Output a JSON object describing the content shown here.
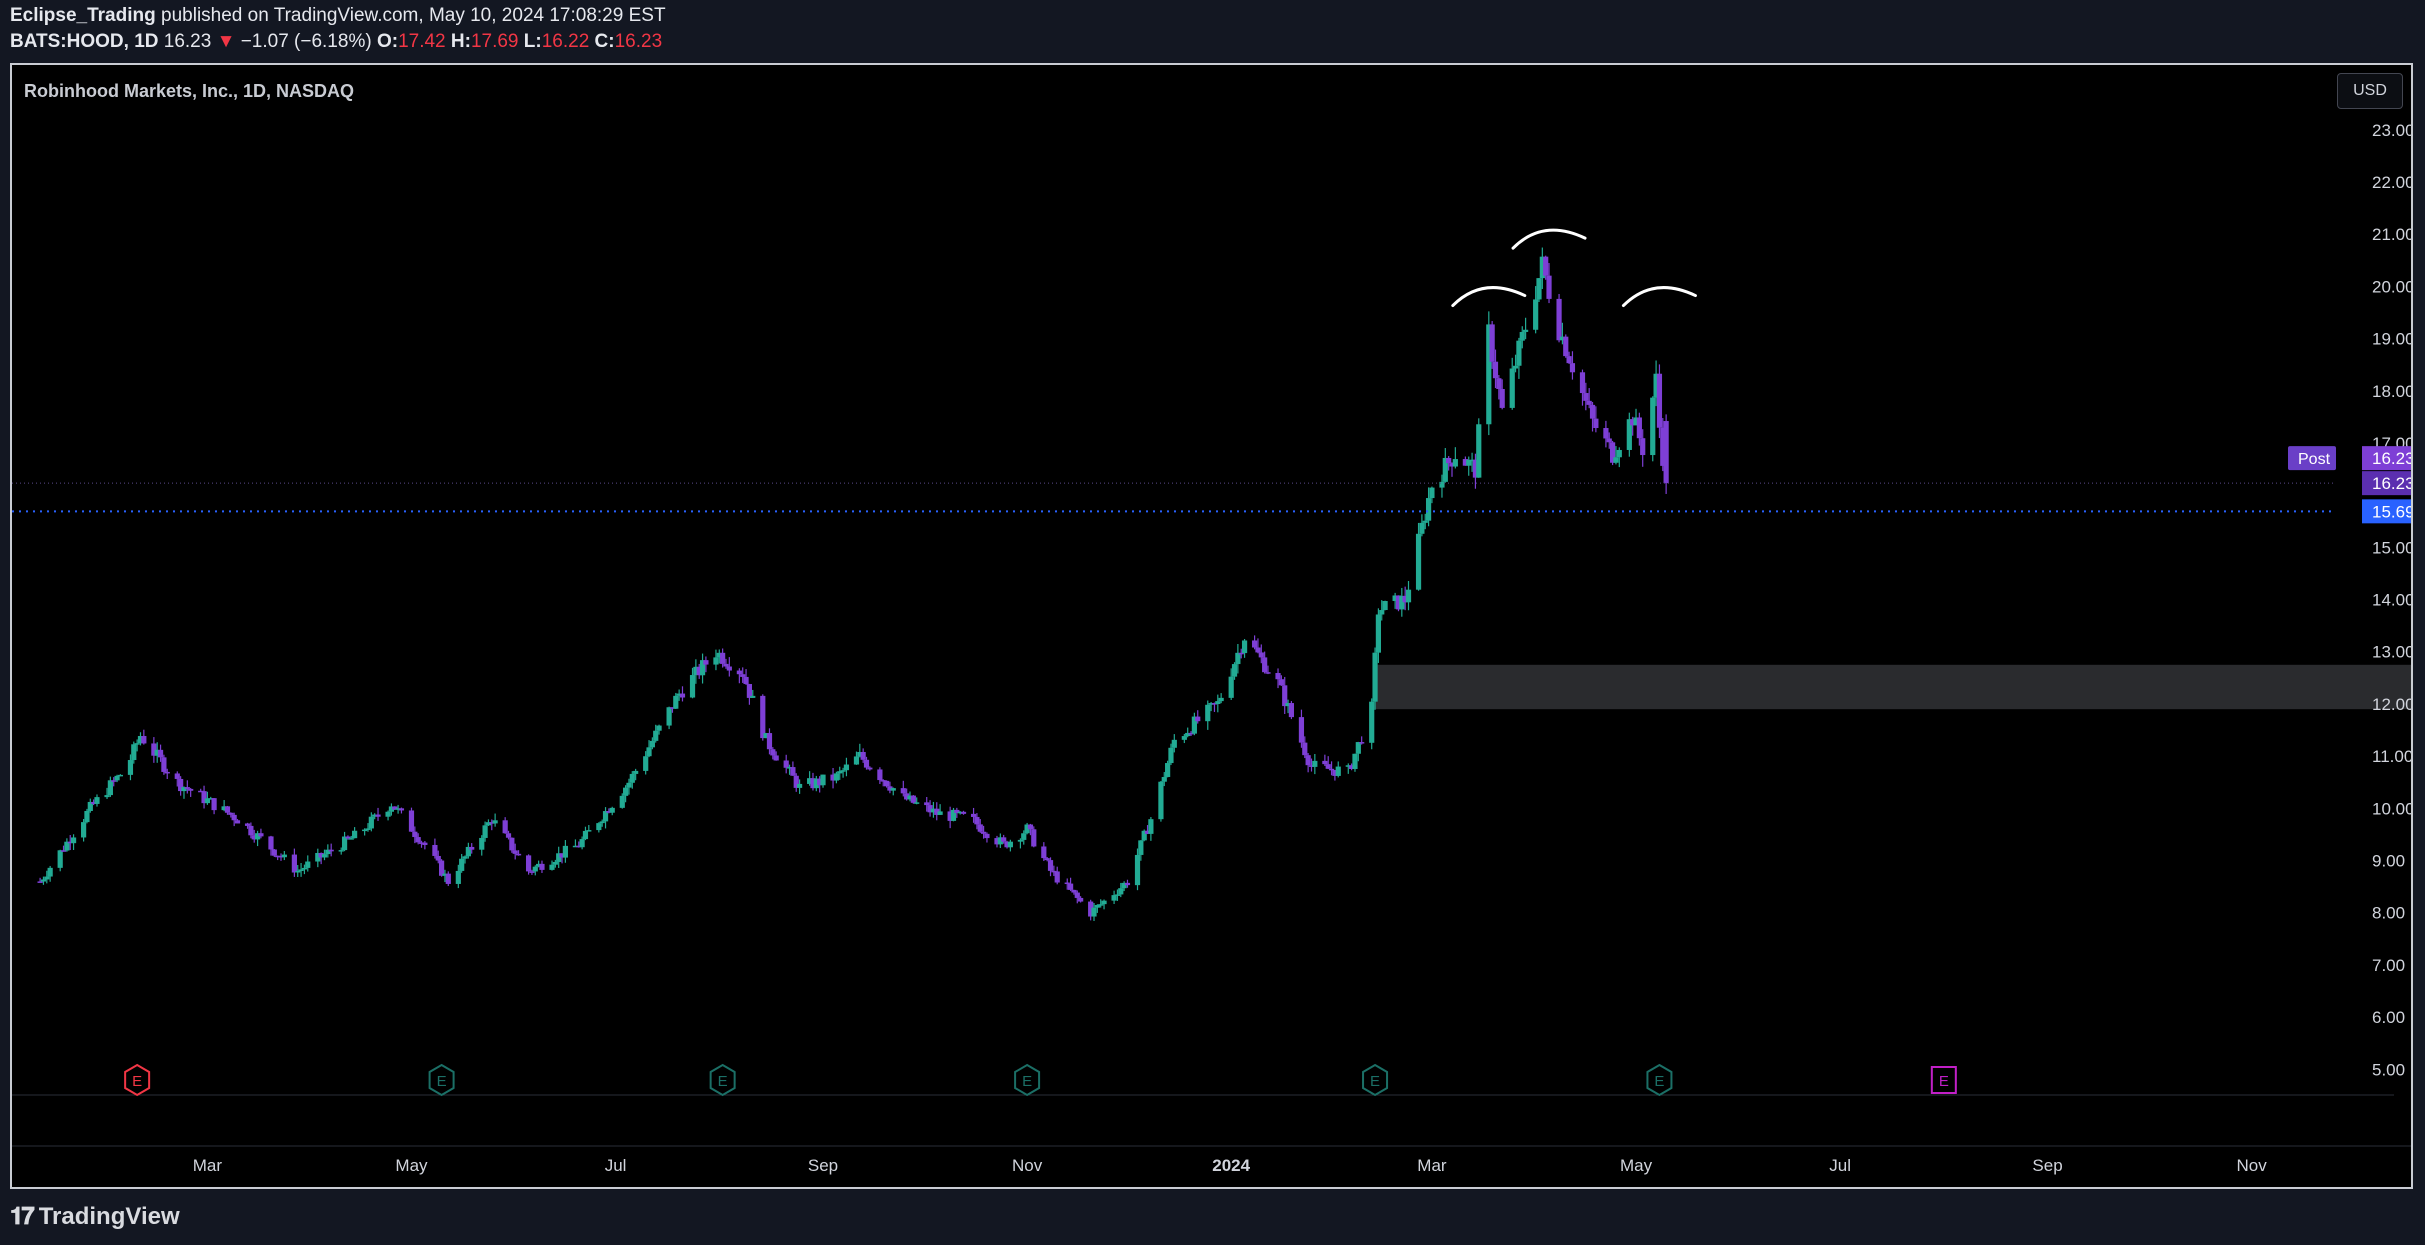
{
  "header": {
    "author": "Eclipse_Trading",
    "published_text": "published on TradingView.com, May 10, 2024 17:08:29 EST",
    "symbol_line": "BATS:HOOD, 1D",
    "last": "16.23",
    "change_arrow": "▼",
    "change": "−1.07 (−6.18%)",
    "o_label": "O:",
    "o": "17.42",
    "h_label": "H:",
    "h": "17.69",
    "l_label": "L:",
    "l": "16.22",
    "c_label": "C:",
    "c": "16.23"
  },
  "chart_title": "Robinhood Markets, Inc., 1D, NASDAQ",
  "currency_button": "USD",
  "footer": {
    "brand": "TradingView",
    "logo_icon": "tradingview-logo-icon"
  },
  "colors": {
    "up": "#22ab94",
    "down": "#7e3fd6",
    "zone": "#2a2b2e",
    "level_line": "#2962ff",
    "post_badge": "#6a3fc7",
    "earnings_past": "#1b6f66",
    "earnings_first": "#f23645",
    "earnings_future": "#c21fc7"
  },
  "chart_data": {
    "type": "candlestick",
    "x_tick_labels": [
      "Mar",
      "May",
      "Jul",
      "Sep",
      "Nov",
      "2024",
      "Mar",
      "May",
      "Jul",
      "Sep",
      "Nov"
    ],
    "x_tick_dates": [
      "2023-03-01",
      "2023-05-01",
      "2023-07-01",
      "2023-09-01",
      "2023-11-01",
      "2024-01-01",
      "2024-03-01",
      "2024-05-01",
      "2024-07-01",
      "2024-09-01",
      "2024-11-01"
    ],
    "ylim": [
      4.7,
      23.8
    ],
    "y_ticks": [
      "5.00",
      "6.00",
      "7.00",
      "8.00",
      "9.00",
      "10.00",
      "11.00",
      "12.00",
      "13.00",
      "14.00",
      "15.00",
      "16.00",
      "17.00",
      "18.00",
      "19.00",
      "20.00",
      "21.00",
      "22.00",
      "23.00"
    ],
    "price_path": [
      [
        "2023-01-10",
        8.6
      ],
      [
        "2023-01-25",
        10.0
      ],
      [
        "2023-02-05",
        10.8
      ],
      [
        "2023-02-09",
        11.4
      ],
      [
        "2023-02-20",
        10.5
      ],
      [
        "2023-03-10",
        9.8
      ],
      [
        "2023-03-28",
        8.8
      ],
      [
        "2023-04-15",
        9.5
      ],
      [
        "2023-04-25",
        10.1
      ],
      [
        "2023-05-05",
        9.3
      ],
      [
        "2023-05-12",
        8.6
      ],
      [
        "2023-05-25",
        9.8
      ],
      [
        "2023-06-05",
        8.8
      ],
      [
        "2023-06-20",
        9.3
      ],
      [
        "2023-07-05",
        10.5
      ],
      [
        "2023-07-20",
        12.2
      ],
      [
        "2023-07-31",
        13.0
      ],
      [
        "2023-08-08",
        12.6
      ],
      [
        "2023-08-15",
        11.3
      ],
      [
        "2023-08-25",
        10.4
      ],
      [
        "2023-09-05",
        10.6
      ],
      [
        "2023-09-12",
        11.0
      ],
      [
        "2023-09-25",
        10.2
      ],
      [
        "2023-10-05",
        9.9
      ],
      [
        "2023-10-15",
        9.8
      ],
      [
        "2023-10-25",
        9.3
      ],
      [
        "2023-11-01",
        9.6
      ],
      [
        "2023-11-08",
        8.8
      ],
      [
        "2023-11-20",
        8.0
      ],
      [
        "2023-12-01",
        8.6
      ],
      [
        "2023-12-08",
        9.8
      ],
      [
        "2023-12-15",
        11.3
      ],
      [
        "2023-12-28",
        12.0
      ],
      [
        "2024-01-05",
        13.3
      ],
      [
        "2024-01-15",
        12.4
      ],
      [
        "2024-01-25",
        10.8
      ],
      [
        "2024-02-05",
        10.7
      ],
      [
        "2024-02-12",
        11.9
      ],
      [
        "2024-02-14",
        13.8
      ],
      [
        "2024-02-22",
        14.0
      ],
      [
        "2024-03-01",
        16.2
      ],
      [
        "2024-03-08",
        16.8
      ],
      [
        "2024-03-14",
        16.5
      ],
      [
        "2024-03-18",
        19.1
      ],
      [
        "2024-03-22",
        17.6
      ],
      [
        "2024-03-28",
        19.0
      ],
      [
        "2024-04-03",
        20.4
      ],
      [
        "2024-04-08",
        19.2
      ],
      [
        "2024-04-12",
        18.5
      ],
      [
        "2024-04-18",
        17.4
      ],
      [
        "2024-04-24",
        16.8
      ],
      [
        "2024-04-30",
        17.5
      ],
      [
        "2024-05-03",
        16.9
      ],
      [
        "2024-05-07",
        18.2
      ],
      [
        "2024-05-08",
        17.3
      ],
      [
        "2024-05-10",
        16.23
      ]
    ],
    "last_close": 16.23,
    "labels": {
      "post_badge": "Post",
      "post_price": "16.23",
      "last_price": "16.23",
      "level_price": "15.69"
    },
    "horizontal_level": 15.69,
    "zone": {
      "from": "2024-02-13",
      "to": "2024-12-20",
      "low": 11.9,
      "high": 12.75
    },
    "earnings": [
      {
        "date": "2023-02-08",
        "label": "E",
        "kind": "first"
      },
      {
        "date": "2023-05-10",
        "label": "E",
        "kind": "past"
      },
      {
        "date": "2023-08-02",
        "label": "E",
        "kind": "past"
      },
      {
        "date": "2023-11-01",
        "label": "E",
        "kind": "past"
      },
      {
        "date": "2024-02-13",
        "label": "E",
        "kind": "past"
      },
      {
        "date": "2024-05-08",
        "label": "E",
        "kind": "past"
      },
      {
        "date": "2024-08-01",
        "label": "E",
        "kind": "future"
      }
    ],
    "annotations": [
      {
        "type": "arc",
        "center_date": "2024-03-18",
        "price": 19.9
      },
      {
        "type": "arc",
        "center_date": "2024-04-05",
        "price": 21.0
      },
      {
        "type": "arc",
        "center_date": "2024-05-08",
        "price": 19.9
      }
    ]
  }
}
